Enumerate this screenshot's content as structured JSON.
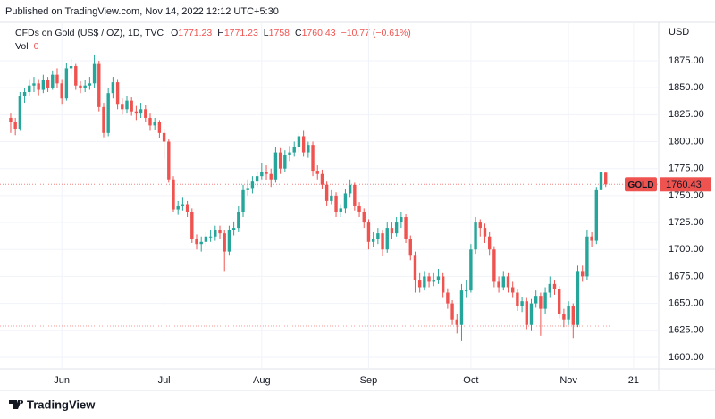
{
  "header": "Published on TradingView.com, Nov 14, 2022 12:12 UTC+5:30",
  "footer": "TradingView",
  "chart_data": {
    "type": "candlestick",
    "symbol": "CFDs on Gold (US$ / OZ), 1D, TVC",
    "ohlc_labels": [
      "O",
      "H",
      "L",
      "C"
    ],
    "change": "−10.77 (−0.61%)",
    "volume_label": "Vol",
    "volume": 0,
    "currency": "USD",
    "ticker": "GOLD",
    "up_color": "#26a69a",
    "down_color": "#ef5350",
    "hline": 1629,
    "grid": true,
    "xlim": [
      -2.3,
      139.4
    ],
    "ylim": [
      1589.2,
      1931.3
    ],
    "xticks": [
      {
        "value": 11,
        "label": "Jun"
      },
      {
        "value": 33,
        "label": "Jul"
      },
      {
        "value": 54,
        "label": "Aug"
      },
      {
        "value": 77,
        "label": "Sep"
      },
      {
        "value": 99,
        "label": "Oct"
      },
      {
        "value": 120,
        "label": "Nov"
      },
      {
        "value": 134,
        "label": "21"
      }
    ],
    "yticks": [
      {
        "value": 1600,
        "label": "1600.00"
      },
      {
        "value": 1625,
        "label": "1625.00"
      },
      {
        "value": 1650,
        "label": "1650.00"
      },
      {
        "value": 1675,
        "label": "1675.00"
      },
      {
        "value": 1700,
        "label": "1700.00"
      },
      {
        "value": 1725,
        "label": "1725.00"
      },
      {
        "value": 1750,
        "label": "1750.00"
      },
      {
        "value": 1775,
        "label": "1775.00"
      },
      {
        "value": 1800,
        "label": "1800.00"
      },
      {
        "value": 1825,
        "label": "1825.00"
      },
      {
        "value": 1850,
        "label": "1850.00"
      },
      {
        "value": 1875,
        "label": "1875.00"
      }
    ],
    "ohlc": [
      [
        1822,
        1826,
        1808,
        1818
      ],
      [
        1818,
        1822,
        1806,
        1812
      ],
      [
        1812,
        1846,
        1810,
        1842
      ],
      [
        1842,
        1850,
        1836,
        1846
      ],
      [
        1846,
        1858,
        1842,
        1852
      ],
      [
        1852,
        1860,
        1846,
        1854
      ],
      [
        1854,
        1858,
        1843,
        1848
      ],
      [
        1848,
        1862,
        1845,
        1857
      ],
      [
        1857,
        1860,
        1846,
        1850
      ],
      [
        1850,
        1866,
        1848,
        1862
      ],
      [
        1862,
        1868,
        1850,
        1854
      ],
      [
        1854,
        1858,
        1835,
        1840
      ],
      [
        1840,
        1873,
        1838,
        1868
      ],
      [
        1868,
        1877,
        1862,
        1870
      ],
      [
        1870,
        1872,
        1848,
        1852
      ],
      [
        1852,
        1856,
        1845,
        1850
      ],
      [
        1850,
        1857,
        1846,
        1852
      ],
      [
        1852,
        1860,
        1848,
        1854
      ],
      [
        1854,
        1880,
        1850,
        1872
      ],
      [
        1872,
        1875,
        1828,
        1832
      ],
      [
        1832,
        1836,
        1804,
        1808
      ],
      [
        1808,
        1850,
        1805,
        1845
      ],
      [
        1845,
        1860,
        1840,
        1855
      ],
      [
        1855,
        1858,
        1830,
        1835
      ],
      [
        1835,
        1840,
        1825,
        1830
      ],
      [
        1830,
        1842,
        1826,
        1838
      ],
      [
        1838,
        1841,
        1824,
        1828
      ],
      [
        1828,
        1833,
        1820,
        1826
      ],
      [
        1826,
        1836,
        1822,
        1830
      ],
      [
        1830,
        1834,
        1818,
        1822
      ],
      [
        1822,
        1826,
        1810,
        1815
      ],
      [
        1815,
        1822,
        1811,
        1818
      ],
      [
        1818,
        1820,
        1803,
        1808
      ],
      [
        1808,
        1812,
        1784,
        1800
      ],
      [
        1800,
        1802,
        1762,
        1765
      ],
      [
        1765,
        1768,
        1735,
        1737
      ],
      [
        1737,
        1745,
        1732,
        1740
      ],
      [
        1740,
        1748,
        1736,
        1742
      ],
      [
        1742,
        1745,
        1730,
        1735
      ],
      [
        1735,
        1738,
        1706,
        1710
      ],
      [
        1710,
        1714,
        1700,
        1705
      ],
      [
        1705,
        1712,
        1698,
        1707
      ],
      [
        1707,
        1716,
        1703,
        1712
      ],
      [
        1712,
        1718,
        1707,
        1712
      ],
      [
        1712,
        1722,
        1708,
        1718
      ],
      [
        1718,
        1722,
        1710,
        1715
      ],
      [
        1715,
        1718,
        1680,
        1698
      ],
      [
        1698,
        1722,
        1695,
        1718
      ],
      [
        1718,
        1726,
        1713,
        1720
      ],
      [
        1720,
        1740,
        1716,
        1735
      ],
      [
        1735,
        1760,
        1730,
        1755
      ],
      [
        1755,
        1765,
        1750,
        1757
      ],
      [
        1757,
        1768,
        1752,
        1763
      ],
      [
        1763,
        1772,
        1758,
        1768
      ],
      [
        1768,
        1780,
        1765,
        1772
      ],
      [
        1772,
        1778,
        1764,
        1770
      ],
      [
        1770,
        1775,
        1758,
        1765
      ],
      [
        1765,
        1795,
        1762,
        1790
      ],
      [
        1790,
        1794,
        1770,
        1775
      ],
      [
        1775,
        1792,
        1772,
        1788
      ],
      [
        1788,
        1796,
        1782,
        1790
      ],
      [
        1790,
        1800,
        1786,
        1795
      ],
      [
        1795,
        1808,
        1790,
        1805
      ],
      [
        1805,
        1810,
        1786,
        1790
      ],
      [
        1790,
        1800,
        1785,
        1797
      ],
      [
        1797,
        1800,
        1768,
        1773
      ],
      [
        1773,
        1778,
        1765,
        1770
      ],
      [
        1770,
        1774,
        1756,
        1760
      ],
      [
        1760,
        1763,
        1740,
        1745
      ],
      [
        1745,
        1755,
        1742,
        1750
      ],
      [
        1750,
        1753,
        1730,
        1735
      ],
      [
        1735,
        1742,
        1730,
        1738
      ],
      [
        1738,
        1756,
        1734,
        1752
      ],
      [
        1752,
        1765,
        1748,
        1760
      ],
      [
        1760,
        1762,
        1736,
        1740
      ],
      [
        1740,
        1744,
        1730,
        1735
      ],
      [
        1735,
        1738,
        1720,
        1725
      ],
      [
        1725,
        1728,
        1700,
        1707
      ],
      [
        1707,
        1716,
        1702,
        1710
      ],
      [
        1710,
        1720,
        1705,
        1715
      ],
      [
        1715,
        1718,
        1694,
        1700
      ],
      [
        1700,
        1725,
        1697,
        1720
      ],
      [
        1720,
        1725,
        1710,
        1715
      ],
      [
        1715,
        1730,
        1712,
        1725
      ],
      [
        1725,
        1735,
        1720,
        1730
      ],
      [
        1730,
        1733,
        1706,
        1710
      ],
      [
        1710,
        1713,
        1690,
        1695
      ],
      [
        1695,
        1698,
        1660,
        1672
      ],
      [
        1672,
        1678,
        1660,
        1665
      ],
      [
        1665,
        1680,
        1662,
        1675
      ],
      [
        1675,
        1678,
        1665,
        1670
      ],
      [
        1670,
        1678,
        1666,
        1672
      ],
      [
        1672,
        1682,
        1668,
        1675
      ],
      [
        1675,
        1678,
        1655,
        1660
      ],
      [
        1660,
        1664,
        1645,
        1650
      ],
      [
        1650,
        1653,
        1630,
        1635
      ],
      [
        1635,
        1640,
        1622,
        1630
      ],
      [
        1630,
        1668,
        1615,
        1662
      ],
      [
        1662,
        1672,
        1655,
        1662
      ],
      [
        1662,
        1705,
        1660,
        1700
      ],
      [
        1700,
        1730,
        1696,
        1725
      ],
      [
        1725,
        1728,
        1712,
        1720
      ],
      [
        1720,
        1724,
        1706,
        1712
      ],
      [
        1712,
        1716,
        1695,
        1700
      ],
      [
        1700,
        1703,
        1665,
        1670
      ],
      [
        1670,
        1675,
        1660,
        1665
      ],
      [
        1665,
        1680,
        1662,
        1675
      ],
      [
        1675,
        1678,
        1660,
        1665
      ],
      [
        1665,
        1670,
        1655,
        1660
      ],
      [
        1660,
        1663,
        1643,
        1648
      ],
      [
        1648,
        1656,
        1642,
        1652
      ],
      [
        1652,
        1655,
        1626,
        1630
      ],
      [
        1630,
        1654,
        1625,
        1650
      ],
      [
        1650,
        1662,
        1646,
        1657
      ],
      [
        1657,
        1660,
        1620,
        1645
      ],
      [
        1645,
        1665,
        1640,
        1660
      ],
      [
        1660,
        1675,
        1655,
        1668
      ],
      [
        1668,
        1672,
        1658,
        1663
      ],
      [
        1663,
        1666,
        1636,
        1640
      ],
      [
        1640,
        1645,
        1628,
        1635
      ],
      [
        1635,
        1652,
        1630,
        1648
      ],
      [
        1648,
        1650,
        1618,
        1630
      ],
      [
        1630,
        1685,
        1628,
        1680
      ],
      [
        1680,
        1685,
        1670,
        1675
      ],
      [
        1675,
        1718,
        1672,
        1712
      ],
      [
        1712,
        1716,
        1702,
        1708
      ],
      [
        1708,
        1758,
        1705,
        1755
      ],
      [
        1755,
        1775,
        1752,
        1772
      ],
      [
        1771.23,
        1771.23,
        1758,
        1760.43
      ]
    ]
  }
}
